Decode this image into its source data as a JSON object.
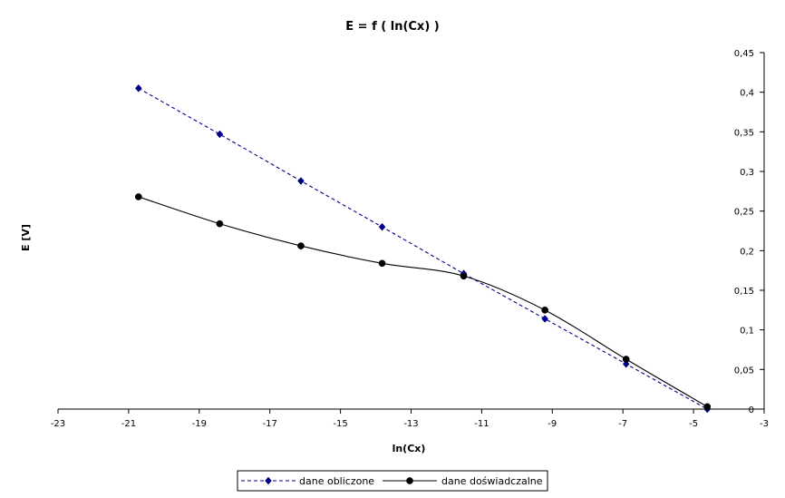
{
  "chart_data": {
    "type": "line",
    "title": "E = f ( ln(Cx) )",
    "xlabel": "ln(Cx)",
    "ylabel": "E [V]",
    "xlim": [
      -23,
      -3
    ],
    "ylim": [
      0,
      0.45
    ],
    "x_ticks": [
      -23,
      -21,
      -19,
      -17,
      -15,
      -13,
      -11,
      -9,
      -7,
      -5,
      -3
    ],
    "x_tick_labels": [
      "-23",
      "-21",
      "-19",
      "-17",
      "-15",
      "-13",
      "-11",
      "-9",
      "-7",
      "-5",
      "-3"
    ],
    "y_ticks": [
      0,
      0.05,
      0.1,
      0.15,
      0.2,
      0.25,
      0.3,
      0.35,
      0.4,
      0.45
    ],
    "y_tick_labels": [
      "0",
      "0,05",
      "0,1",
      "0,15",
      "0,2",
      "0,25",
      "0,3",
      "0,35",
      "0,4",
      "0,45"
    ],
    "grid": false,
    "legend_position": "bottom",
    "series": [
      {
        "name": "dane obliczone",
        "color": "#00008B",
        "line_style": "dashed",
        "marker": "diamond",
        "smooth": false,
        "x": [
          -20.72,
          -18.42,
          -16.12,
          -13.82,
          -11.51,
          -9.21,
          -6.91,
          -4.61
        ],
        "y": [
          0.405,
          0.347,
          0.288,
          0.23,
          0.171,
          0.114,
          0.057,
          0.0
        ]
      },
      {
        "name": "dane doświadczalne",
        "color": "#000000",
        "line_style": "solid",
        "marker": "circle",
        "smooth": true,
        "x": [
          -20.72,
          -18.42,
          -16.12,
          -13.82,
          -11.51,
          -9.21,
          -6.91,
          -4.61
        ],
        "y": [
          0.268,
          0.234,
          0.206,
          0.184,
          0.168,
          0.125,
          0.063,
          0.003
        ]
      }
    ]
  }
}
